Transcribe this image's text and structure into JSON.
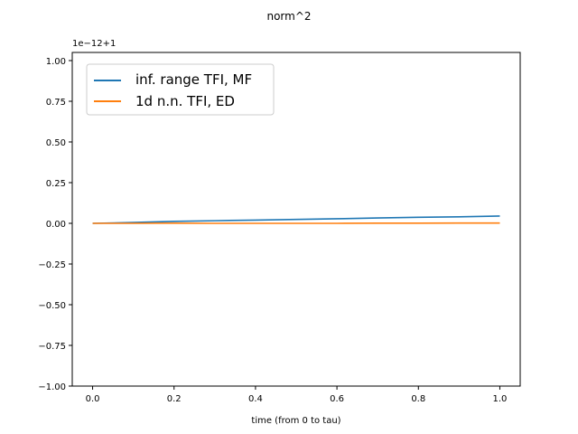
{
  "chart_data": {
    "type": "line",
    "title": "norm^2",
    "xlabel": "time (from 0 to tau)",
    "ylabel": "",
    "offset_text": "1e−12+1",
    "xlim": [
      -0.05,
      1.05
    ],
    "ylim": [
      -1.0,
      1.05
    ],
    "x_ticks": [
      0.0,
      0.2,
      0.4,
      0.6,
      0.8,
      1.0
    ],
    "x_tick_labels": [
      "0.0",
      "0.2",
      "0.4",
      "0.6",
      "0.8",
      "1.0"
    ],
    "y_ticks": [
      -1.0,
      -0.75,
      -0.5,
      -0.25,
      0.0,
      0.25,
      0.5,
      0.75,
      1.0
    ],
    "y_tick_labels": [
      "−1.00",
      "−0.75",
      "−0.50",
      "−0.25",
      "0.00",
      "0.25",
      "0.50",
      "0.75",
      "1.00"
    ],
    "grid": false,
    "legend_position": "upper-left",
    "series": [
      {
        "name": "inf. range TFI, MF",
        "color": "#1f77b4",
        "x": [
          0.0,
          0.1,
          0.2,
          0.3,
          0.4,
          0.5,
          0.6,
          0.7,
          0.8,
          0.9,
          1.0
        ],
        "y": [
          0.0,
          0.005,
          0.012,
          0.016,
          0.02,
          0.024,
          0.028,
          0.033,
          0.037,
          0.04,
          0.045
        ]
      },
      {
        "name": "1d n.n. TFI, ED",
        "color": "#ff7f0e",
        "x": [
          0.0,
          0.1,
          0.2,
          0.3,
          0.4,
          0.5,
          0.6,
          0.7,
          0.8,
          0.9,
          1.0
        ],
        "y": [
          0.0,
          0.0,
          0.001,
          0.0,
          0.0,
          0.0,
          0.0,
          0.001,
          0.001,
          0.002,
          0.002
        ]
      }
    ]
  }
}
